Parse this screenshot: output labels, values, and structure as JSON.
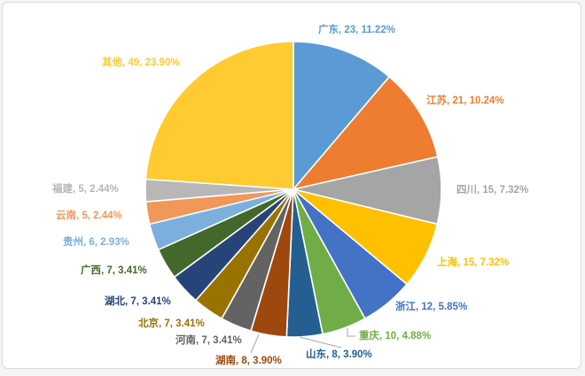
{
  "chart_data": {
    "type": "pie",
    "title": "",
    "total": 205,
    "start_angle_deg": 0,
    "direction": "clockwise",
    "legend_position": "none",
    "label_style": "outside-end, colored to match slice, format: name, value, percent",
    "leader_line_color": "#A6A6A6",
    "slice_border_color": "#FFFFFF",
    "frame_border_color": "#D9D9D9",
    "slices": [
      {
        "name": "广东",
        "value": 23,
        "percent": "11.22%",
        "color": "#5B9BD5"
      },
      {
        "name": "江苏",
        "value": 21,
        "percent": "10.24%",
        "color": "#ED7D31"
      },
      {
        "name": "四川",
        "value": 15,
        "percent": "7.32%",
        "color": "#A5A5A5"
      },
      {
        "name": "上海",
        "value": 15,
        "percent": "7.32%",
        "color": "#FFC000"
      },
      {
        "name": "浙江",
        "value": 12,
        "percent": "5.85%",
        "color": "#4472C4"
      },
      {
        "name": "重庆",
        "value": 10,
        "percent": "4.88%",
        "color": "#70AD47"
      },
      {
        "name": "山东",
        "value": 8,
        "percent": "3.90%",
        "color": "#255E91"
      },
      {
        "name": "湖南",
        "value": 8,
        "percent": "3.90%",
        "color": "#9E480E"
      },
      {
        "name": "河南",
        "value": 7,
        "percent": "3.41%",
        "color": "#636363"
      },
      {
        "name": "北京",
        "value": 7,
        "percent": "3.41%",
        "color": "#997300"
      },
      {
        "name": "湖北",
        "value": 7,
        "percent": "3.41%",
        "color": "#264478"
      },
      {
        "name": "广西",
        "value": 7,
        "percent": "3.41%",
        "color": "#43682B"
      },
      {
        "name": "贵州",
        "value": 6,
        "percent": "2.93%",
        "color": "#7CAFDD"
      },
      {
        "name": "云南",
        "value": 5,
        "percent": "2.44%",
        "color": "#F1975A"
      },
      {
        "name": "福建",
        "value": 5,
        "percent": "2.44%",
        "color": "#B7B7B7"
      },
      {
        "name": "其他",
        "value": 49,
        "percent": "23.90%",
        "color": "#FFCB30"
      }
    ]
  }
}
